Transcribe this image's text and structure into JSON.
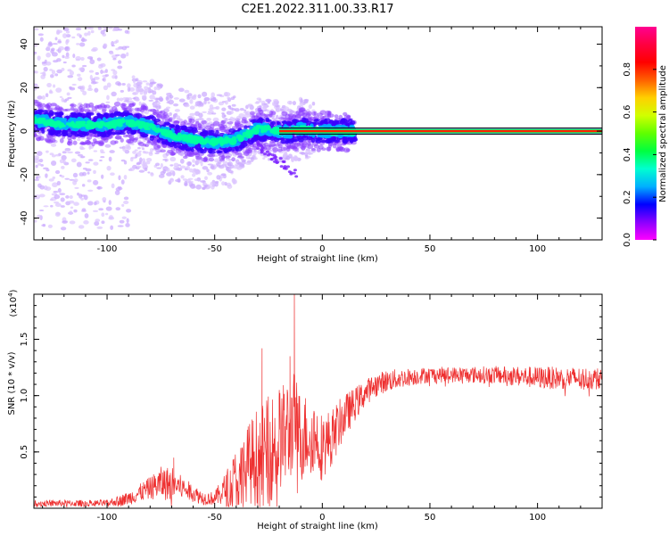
{
  "title": "C2E1.2022.311.00.33.R17",
  "colors": {
    "snr_line": "#ee3030",
    "cbar_stops": [
      "#ff00ff",
      "#8a00ff",
      "#0000ff",
      "#00b0ff",
      "#00ffd0",
      "#00ff40",
      "#60ff00",
      "#d0ff00",
      "#ffd000",
      "#ff6000",
      "#ff0000",
      "#ff0040",
      "#ff0090"
    ]
  },
  "chart_data": [
    {
      "type": "heatmap",
      "xlabel": "Height of straight line (km)",
      "ylabel": "Frequency (Hz)",
      "xlim": [
        -134,
        130
      ],
      "ylim": [
        -50,
        48
      ],
      "x_ticks": [
        -100,
        -50,
        0,
        50,
        100
      ],
      "x_tick_labels": [
        "-100",
        "-50",
        "0",
        "50",
        "100"
      ],
      "y_ticks": [
        -40,
        -20,
        0,
        20,
        40
      ],
      "y_tick_labels": [
        "-40",
        "-20",
        "0",
        "20",
        "40"
      ],
      "colorbar": {
        "label": "Normalized spectral amplitude",
        "range": [
          0,
          1
        ],
        "ticks": [
          0.0,
          0.2,
          0.4,
          0.6,
          0.8
        ],
        "tick_labels": [
          "0.0",
          "0.2",
          "0.4",
          "0.6",
          "0.8"
        ]
      },
      "ridge": {
        "x": [
          -134,
          -120,
          -100,
          -90,
          -80,
          -70,
          -60,
          -50,
          -40,
          -30,
          -20,
          -15,
          -10,
          0,
          10,
          20,
          130
        ],
        "freq": [
          5,
          3,
          3,
          4,
          2,
          -2,
          -4,
          -5,
          -4,
          1,
          0,
          0,
          1,
          0,
          0,
          0,
          0
        ],
        "note_shape": "broad scattered below -20 km, narrow line near 0 Hz above"
      }
    },
    {
      "type": "line",
      "xlabel": "Height of straight line (km)",
      "ylabel": "SNR (10 * v/v)",
      "y_multiplier_label": "(x10",
      "y_multiplier_exp": "4",
      "xlim": [
        -134,
        130
      ],
      "ylim": [
        0,
        1.9
      ],
      "x_ticks": [
        -100,
        -50,
        0,
        50,
        100
      ],
      "x_tick_labels": [
        "-100",
        "-50",
        "0",
        "50",
        "100"
      ],
      "y_ticks": [
        0.5,
        1.0,
        1.5
      ],
      "y_tick_labels": [
        "0.5",
        "1.0",
        "1.5"
      ],
      "series_envelope": {
        "x": [
          -134,
          -100,
          -90,
          -80,
          -75,
          -70,
          -65,
          -60,
          -55,
          -50,
          -45,
          -40,
          -35,
          -30,
          -25,
          -20,
          -15,
          -13,
          -10,
          -5,
          0,
          5,
          10,
          15,
          20,
          25,
          30,
          40,
          50,
          60,
          80,
          100,
          130
        ],
        "mean": [
          0.05,
          0.05,
          0.1,
          0.2,
          0.25,
          0.25,
          0.2,
          0.15,
          0.1,
          0.1,
          0.2,
          0.3,
          0.45,
          0.55,
          0.6,
          0.7,
          0.8,
          0.9,
          0.7,
          0.75,
          0.6,
          0.7,
          0.85,
          0.95,
          1.05,
          1.12,
          1.15,
          1.18,
          1.2,
          1.2,
          1.2,
          1.18,
          1.17
        ],
        "amp": [
          0.03,
          0.03,
          0.06,
          0.1,
          0.15,
          0.15,
          0.1,
          0.08,
          0.06,
          0.06,
          0.15,
          0.3,
          0.35,
          0.45,
          0.5,
          0.45,
          0.5,
          0.4,
          0.4,
          0.35,
          0.3,
          0.25,
          0.2,
          0.15,
          0.12,
          0.1,
          0.1,
          0.08,
          0.07,
          0.07,
          0.08,
          0.1,
          0.1
        ],
        "peaks": [
          {
            "x": -69,
            "y": 0.45
          },
          {
            "x": -28,
            "y": 1.42
          },
          {
            "x": -13,
            "y": 1.95
          },
          {
            "x": -15,
            "y": 1.35
          },
          {
            "x": -20,
            "y": 1.05
          }
        ]
      }
    }
  ]
}
